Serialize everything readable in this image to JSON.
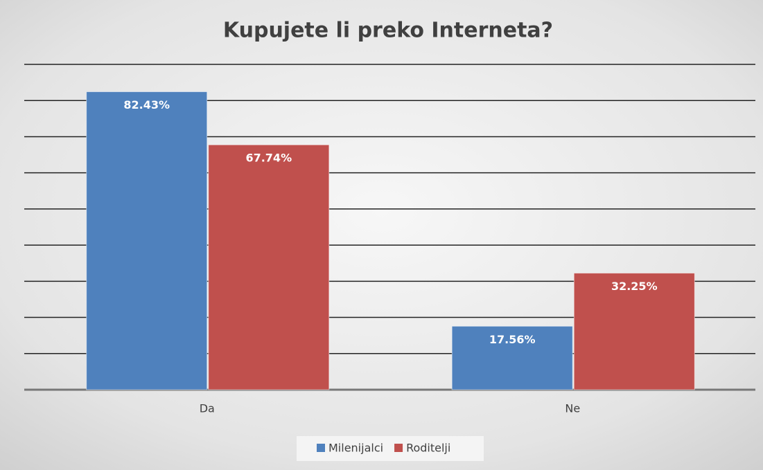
{
  "chart_data": {
    "type": "bar",
    "title": "Kupujete li preko Interneta?",
    "categories": [
      "Da",
      "Ne"
    ],
    "series": [
      {
        "name": "Milenijalci",
        "color": "#4f81bd",
        "values": [
          82.43,
          17.56
        ],
        "value_labels": [
          "82.43%",
          "17.56%"
        ]
      },
      {
        "name": "Roditelji",
        "color": "#c0504d",
        "values": [
          67.74,
          32.25
        ],
        "value_labels": [
          "67.74%",
          "32.25%"
        ]
      }
    ],
    "ylim": [
      0,
      90
    ],
    "yticks": [
      0,
      10,
      20,
      30,
      40,
      50,
      60,
      70,
      80,
      90
    ],
    "grid": true,
    "legend": "bottom"
  }
}
